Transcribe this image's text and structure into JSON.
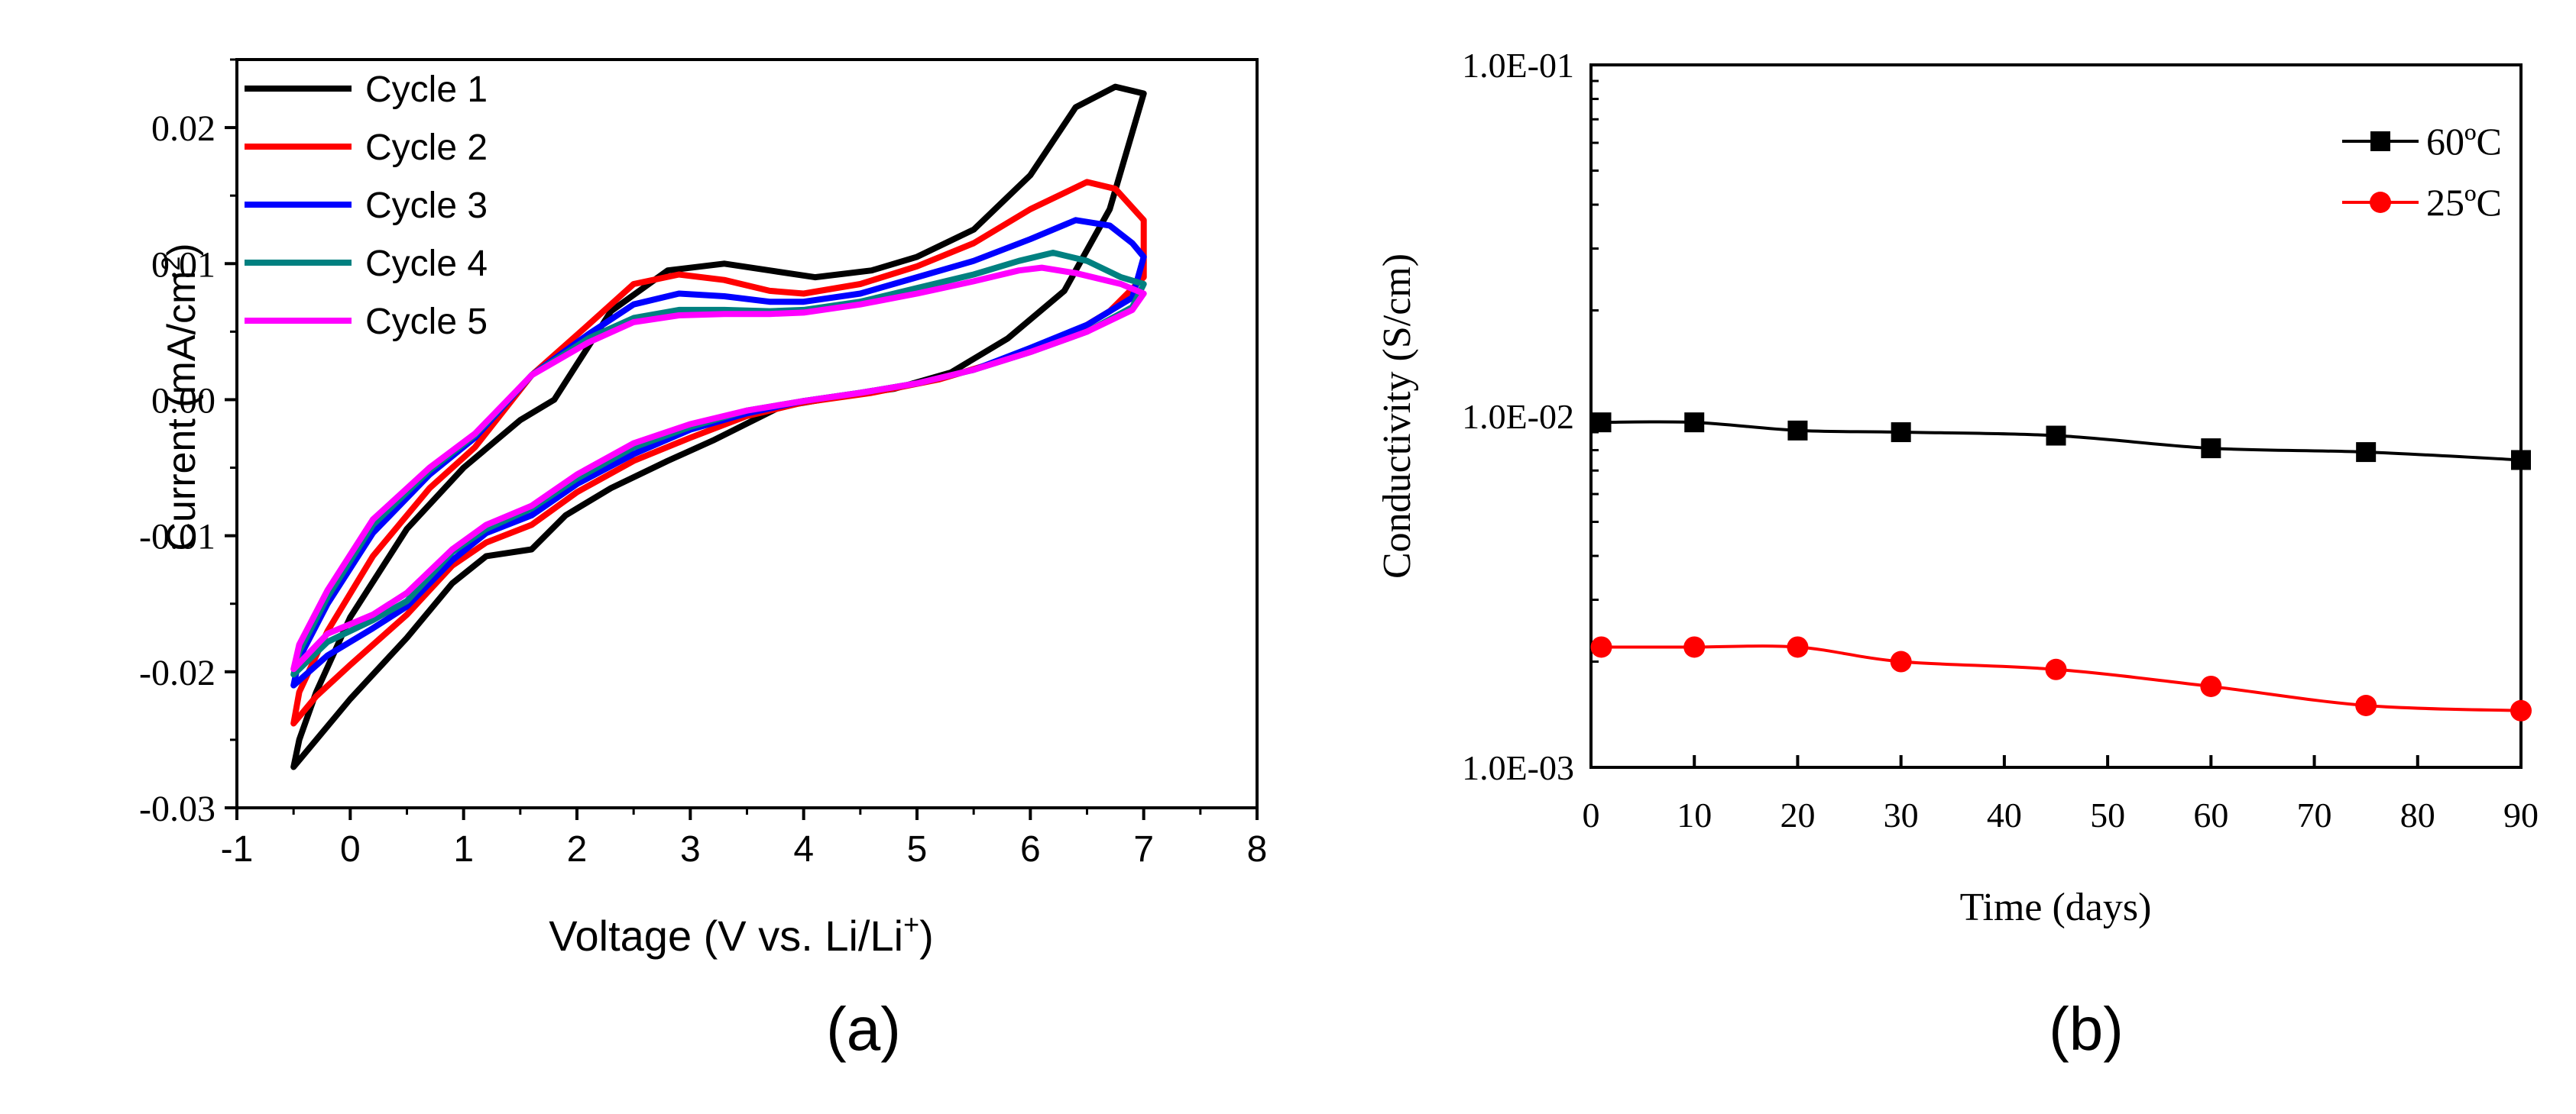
{
  "chart_data": [
    {
      "panel": "(a)",
      "type": "line",
      "title": "",
      "xlabel": "Voltage (V vs. Li/Li",
      "xlabel_sup": "+",
      "xlabel_end": ")",
      "ylabel": "Current (mA/cm",
      "ylabel_sup": "2",
      "ylabel_end": ")",
      "xlim": [
        -1,
        8
      ],
      "ylim": [
        -0.03,
        0.025
      ],
      "xticks": [
        -1,
        0,
        1,
        2,
        3,
        4,
        5,
        6,
        7,
        8
      ],
      "xtick_labels": [
        "-1",
        "0",
        "1",
        "2",
        "3",
        "4",
        "5",
        "6",
        "7",
        "8"
      ],
      "yticks": [
        -0.03,
        -0.02,
        -0.01,
        0.0,
        0.01,
        0.02
      ],
      "ytick_labels": [
        "-0.03",
        "-0.02",
        "-0.01",
        "0.00",
        "0.01",
        "0.02"
      ],
      "legend_position": "top-left",
      "series": [
        {
          "name": "Cycle 1",
          "color": "#000000",
          "points": [
            [
              1.8,
              0.0
            ],
            [
              2.3,
              0.0065
            ],
            [
              2.8,
              0.0095
            ],
            [
              3.3,
              0.01
            ],
            [
              3.7,
              0.0095
            ],
            [
              4.1,
              0.009
            ],
            [
              4.6,
              0.0095
            ],
            [
              5.0,
              0.0105
            ],
            [
              5.5,
              0.0125
            ],
            [
              6.0,
              0.0165
            ],
            [
              6.4,
              0.0215
            ],
            [
              6.75,
              0.023
            ],
            [
              7.0,
              0.0225
            ],
            [
              6.7,
              0.014
            ],
            [
              6.3,
              0.008
            ],
            [
              5.8,
              0.0045
            ],
            [
              5.3,
              0.002
            ],
            [
              4.8,
              0.0008
            ],
            [
              4.3,
              0.0002
            ],
            [
              3.8,
              -0.0005
            ],
            [
              3.2,
              -0.003
            ],
            [
              2.8,
              -0.0045
            ],
            [
              2.3,
              -0.0065
            ],
            [
              1.9,
              -0.0085
            ],
            [
              1.6,
              -0.011
            ],
            [
              1.2,
              -0.0115
            ],
            [
              0.9,
              -0.0135
            ],
            [
              0.5,
              -0.0175
            ],
            [
              0.0,
              -0.022
            ],
            [
              -0.3,
              -0.025
            ],
            [
              -0.5,
              -0.027
            ],
            [
              -0.45,
              -0.025
            ],
            [
              -0.3,
              -0.0215
            ],
            [
              0.0,
              -0.016
            ],
            [
              0.5,
              -0.0095
            ],
            [
              1.0,
              -0.005
            ],
            [
              1.5,
              -0.0015
            ],
            [
              1.8,
              0.0
            ]
          ]
        },
        {
          "name": "Cycle 2",
          "color": "#ff0000",
          "points": [
            [
              1.6,
              0.0018
            ],
            [
              2.1,
              0.0055
            ],
            [
              2.5,
              0.0085
            ],
            [
              2.9,
              0.0092
            ],
            [
              3.3,
              0.0088
            ],
            [
              3.7,
              0.008
            ],
            [
              4.0,
              0.0078
            ],
            [
              4.5,
              0.0085
            ],
            [
              5.0,
              0.0098
            ],
            [
              5.5,
              0.0115
            ],
            [
              6.0,
              0.014
            ],
            [
              6.5,
              0.016
            ],
            [
              6.75,
              0.0155
            ],
            [
              7.0,
              0.0132
            ],
            [
              7.0,
              0.009
            ],
            [
              6.7,
              0.0065
            ],
            [
              6.3,
              0.0045
            ],
            [
              5.8,
              0.003
            ],
            [
              5.2,
              0.0015
            ],
            [
              4.6,
              0.0005
            ],
            [
              4.0,
              -0.0002
            ],
            [
              3.5,
              -0.0012
            ],
            [
              3.0,
              -0.0028
            ],
            [
              2.5,
              -0.0045
            ],
            [
              2.0,
              -0.0068
            ],
            [
              1.6,
              -0.0092
            ],
            [
              1.2,
              -0.0105
            ],
            [
              0.9,
              -0.0122
            ],
            [
              0.5,
              -0.0158
            ],
            [
              0.0,
              -0.0195
            ],
            [
              -0.3,
              -0.0218
            ],
            [
              -0.5,
              -0.0238
            ],
            [
              -0.45,
              -0.0215
            ],
            [
              -0.2,
              -0.017
            ],
            [
              0.2,
              -0.0115
            ],
            [
              0.7,
              -0.0065
            ],
            [
              1.1,
              -0.0035
            ],
            [
              1.6,
              0.0018
            ]
          ]
        },
        {
          "name": "Cycle 3",
          "color": "#0000ff",
          "points": [
            [
              1.6,
              0.0018
            ],
            [
              2.1,
              0.0048
            ],
            [
              2.5,
              0.007
            ],
            [
              2.9,
              0.0078
            ],
            [
              3.3,
              0.0076
            ],
            [
              3.7,
              0.0072
            ],
            [
              4.0,
              0.0072
            ],
            [
              4.5,
              0.0078
            ],
            [
              5.0,
              0.009
            ],
            [
              5.5,
              0.0102
            ],
            [
              6.0,
              0.0118
            ],
            [
              6.4,
              0.0132
            ],
            [
              6.7,
              0.0128
            ],
            [
              6.9,
              0.0115
            ],
            [
              7.0,
              0.0105
            ],
            [
              6.9,
              0.0075
            ],
            [
              6.5,
              0.0055
            ],
            [
              6.0,
              0.0038
            ],
            [
              5.5,
              0.0022
            ],
            [
              5.0,
              0.0012
            ],
            [
              4.5,
              0.0005
            ],
            [
              4.0,
              -0.0001
            ],
            [
              3.5,
              -0.001
            ],
            [
              3.0,
              -0.0022
            ],
            [
              2.5,
              -0.004
            ],
            [
              2.0,
              -0.0062
            ],
            [
              1.6,
              -0.0085
            ],
            [
              1.2,
              -0.0098
            ],
            [
              0.9,
              -0.0118
            ],
            [
              0.5,
              -0.0152
            ],
            [
              0.2,
              -0.0168
            ],
            [
              -0.2,
              -0.0188
            ],
            [
              -0.5,
              -0.021
            ],
            [
              -0.45,
              -0.019
            ],
            [
              -0.2,
              -0.015
            ],
            [
              0.2,
              -0.0098
            ],
            [
              0.7,
              -0.0055
            ],
            [
              1.1,
              -0.0028
            ],
            [
              1.6,
              0.0018
            ]
          ]
        },
        {
          "name": "Cycle 4",
          "color": "#008080",
          "points": [
            [
              1.6,
              0.0018
            ],
            [
              2.1,
              0.0045
            ],
            [
              2.5,
              0.006
            ],
            [
              2.9,
              0.0066
            ],
            [
              3.3,
              0.0066
            ],
            [
              3.7,
              0.0065
            ],
            [
              4.0,
              0.0066
            ],
            [
              4.5,
              0.0072
            ],
            [
              5.0,
              0.0082
            ],
            [
              5.5,
              0.0092
            ],
            [
              5.9,
              0.0102
            ],
            [
              6.2,
              0.0108
            ],
            [
              6.5,
              0.0102
            ],
            [
              6.8,
              0.009
            ],
            [
              7.0,
              0.0085
            ],
            [
              6.9,
              0.0068
            ],
            [
              6.5,
              0.005
            ],
            [
              6.0,
              0.0035
            ],
            [
              5.5,
              0.0022
            ],
            [
              5.0,
              0.0012
            ],
            [
              4.5,
              0.0005
            ],
            [
              4.0,
              -0.0001
            ],
            [
              3.5,
              -0.0008
            ],
            [
              3.0,
              -0.002
            ],
            [
              2.5,
              -0.0035
            ],
            [
              2.0,
              -0.0058
            ],
            [
              1.6,
              -0.008
            ],
            [
              1.2,
              -0.0095
            ],
            [
              0.9,
              -0.0112
            ],
            [
              0.5,
              -0.0148
            ],
            [
              0.2,
              -0.0162
            ],
            [
              -0.2,
              -0.0178
            ],
            [
              -0.5,
              -0.0202
            ],
            [
              -0.45,
              -0.0185
            ],
            [
              -0.2,
              -0.0145
            ],
            [
              0.2,
              -0.0092
            ],
            [
              0.7,
              -0.0052
            ],
            [
              1.1,
              -0.0026
            ],
            [
              1.6,
              0.0018
            ]
          ]
        },
        {
          "name": "Cycle 5",
          "color": "#ff00ff",
          "points": [
            [
              1.6,
              0.0018
            ],
            [
              2.1,
              0.0042
            ],
            [
              2.5,
              0.0057
            ],
            [
              2.9,
              0.0062
            ],
            [
              3.3,
              0.0063
            ],
            [
              3.7,
              0.0063
            ],
            [
              4.0,
              0.0064
            ],
            [
              4.5,
              0.007
            ],
            [
              5.0,
              0.0078
            ],
            [
              5.5,
              0.0087
            ],
            [
              5.9,
              0.0095
            ],
            [
              6.1,
              0.0097
            ],
            [
              6.4,
              0.0093
            ],
            [
              6.8,
              0.0085
            ],
            [
              7.0,
              0.0078
            ],
            [
              6.9,
              0.0066
            ],
            [
              6.5,
              0.005
            ],
            [
              6.0,
              0.0035
            ],
            [
              5.5,
              0.0022
            ],
            [
              5.0,
              0.0012
            ],
            [
              4.5,
              0.0005
            ],
            [
              4.0,
              -0.0001
            ],
            [
              3.5,
              -0.0008
            ],
            [
              3.0,
              -0.0018
            ],
            [
              2.5,
              -0.0032
            ],
            [
              2.0,
              -0.0055
            ],
            [
              1.6,
              -0.0078
            ],
            [
              1.2,
              -0.0092
            ],
            [
              0.9,
              -0.011
            ],
            [
              0.5,
              -0.0142
            ],
            [
              0.2,
              -0.0158
            ],
            [
              -0.2,
              -0.0172
            ],
            [
              -0.5,
              -0.0198
            ],
            [
              -0.45,
              -0.018
            ],
            [
              -0.2,
              -0.014
            ],
            [
              0.2,
              -0.0088
            ],
            [
              0.7,
              -0.005
            ],
            [
              1.1,
              -0.0025
            ],
            [
              1.6,
              0.0018
            ]
          ]
        }
      ]
    },
    {
      "panel": "(b)",
      "type": "line",
      "title": "",
      "xlabel": "Time (days)",
      "ylabel": "Conductivity (S/cm)",
      "yscale": "log",
      "xlim": [
        0,
        90
      ],
      "ylim": [
        0.001,
        0.1
      ],
      "xticks": [
        0,
        10,
        20,
        30,
        40,
        50,
        60,
        70,
        80,
        90
      ],
      "xtick_labels": [
        "0",
        "10",
        "20",
        "30",
        "40",
        "50",
        "60",
        "70",
        "80",
        "90"
      ],
      "yticks": [
        0.001,
        0.01,
        0.1
      ],
      "ytick_labels": [
        "1.0E-03",
        "1.0E-02",
        "1.0E-01"
      ],
      "legend_position": "top-right",
      "series": [
        {
          "name": "60ºC",
          "color": "#000000",
          "marker": "square",
          "x": [
            1,
            10,
            20,
            30,
            45,
            60,
            75,
            90
          ],
          "y": [
            0.0096,
            0.0096,
            0.0091,
            0.009,
            0.0088,
            0.0081,
            0.0079,
            0.0075
          ]
        },
        {
          "name": "25ºC",
          "color": "#ff0000",
          "marker": "circle",
          "x": [
            1,
            10,
            20,
            30,
            45,
            60,
            75,
            90
          ],
          "y": [
            0.0022,
            0.0022,
            0.0022,
            0.002,
            0.0019,
            0.0017,
            0.0015,
            0.00145
          ]
        }
      ]
    }
  ]
}
